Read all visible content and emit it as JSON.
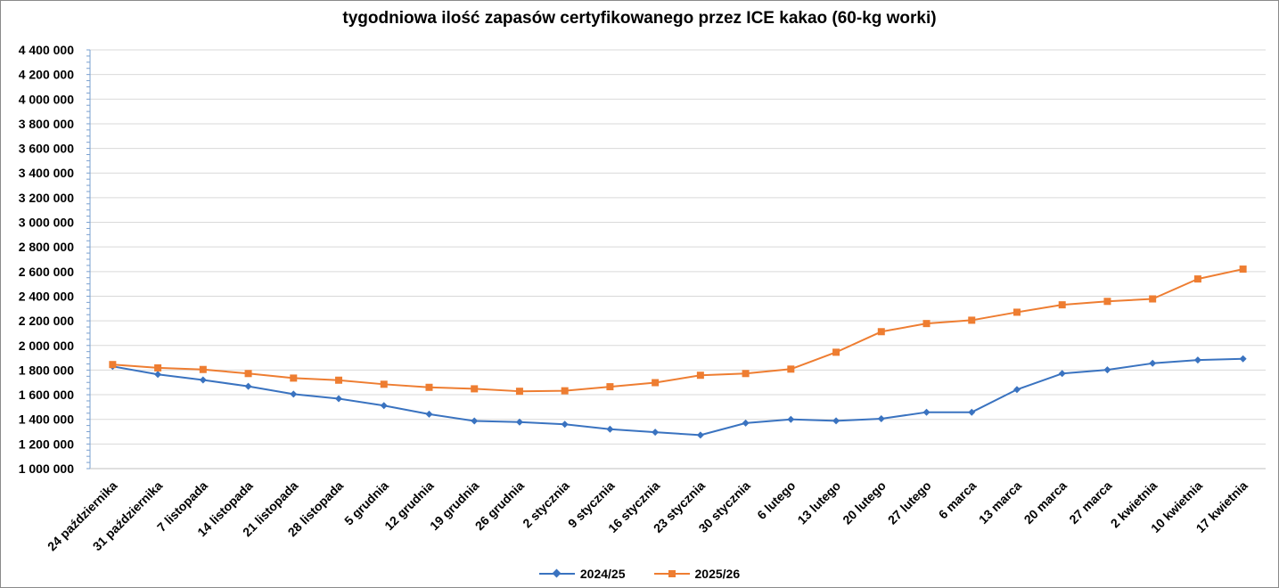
{
  "chart_data": {
    "type": "line",
    "title": "tygodniowa ilość zapasów certyfikowanego przez ICE kakao (60-kg worki)",
    "xlabel": "",
    "ylabel": "",
    "ylim": [
      1000000,
      4400000
    ],
    "y_ticks": [
      "1 000 000",
      "1 200 000",
      "1 400 000",
      "1 600 000",
      "1 800 000",
      "2 000 000",
      "2 200 000",
      "2 400 000",
      "2 600 000",
      "2 800 000",
      "3 000 000",
      "3 200 000",
      "3 400 000",
      "3 600 000",
      "3 800 000",
      "4 000 000",
      "4 200 000",
      "4 400 000"
    ],
    "categories": [
      "24 października",
      "31 października",
      "7 listopada",
      "14 listopada",
      "21 listopada",
      "28 listopada",
      "5 grudnia",
      "12 grudnia",
      "19 grudnia",
      "26 grudnia",
      "2 stycznia",
      "9 stycznia",
      "16 stycznia",
      "23 stycznia",
      "30 stycznia",
      "6 lutego",
      "13 lutego",
      "20 lutego",
      "27 lutego",
      "6 marca",
      "13 marca",
      "20 marca",
      "27 marca",
      "2 kwietnia",
      "10 kwietnia",
      "17 kwietnia"
    ],
    "grid": true,
    "legend_position": "bottom",
    "series": [
      {
        "name": "2024/25",
        "color": "#3a73c0",
        "marker": "diamond",
        "values": [
          1830000,
          1765000,
          1720000,
          1668000,
          1605000,
          1568000,
          1512000,
          1442000,
          1387000,
          1378000,
          1360000,
          1320000,
          1296000,
          1272000,
          1370000,
          1400000,
          1388000,
          1405000,
          1458000,
          1458000,
          1642000,
          1772000,
          1802000,
          1855000,
          1882000,
          1892000
        ]
      },
      {
        "name": "2025/26",
        "color": "#ee7d31",
        "marker": "square",
        "values": [
          1845000,
          1818000,
          1805000,
          1772000,
          1735000,
          1718000,
          1685000,
          1660000,
          1648000,
          1628000,
          1632000,
          1665000,
          1698000,
          1758000,
          1772000,
          1808000,
          1945000,
          2112000,
          2178000,
          2205000,
          2270000,
          2330000,
          2358000,
          2378000,
          2540000,
          2620000
        ]
      }
    ]
  }
}
